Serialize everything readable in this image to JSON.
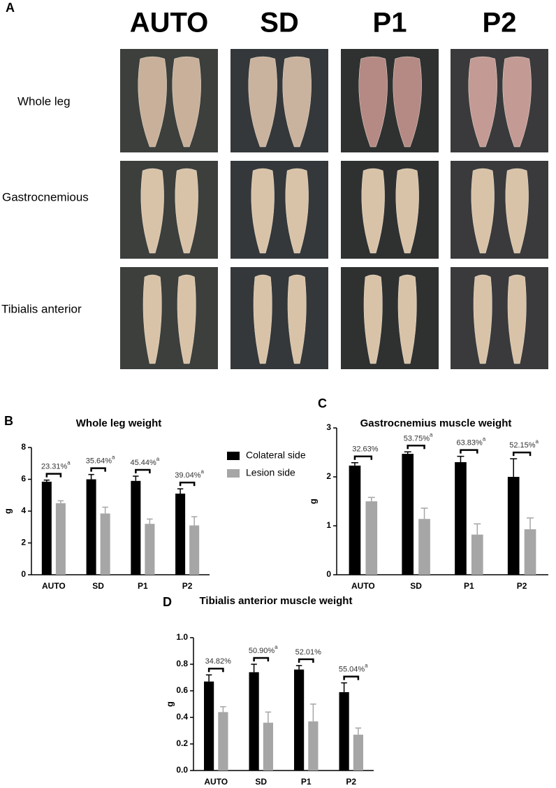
{
  "panel_a": {
    "label": "A",
    "columns": [
      "AUTO",
      "SD",
      "P1",
      "P2"
    ],
    "rows": [
      "Whole leg",
      "Gastrocnemious",
      "Tibialis anterior"
    ]
  },
  "chart_data": [
    {
      "type": "bar",
      "label": "B",
      "title": "Whole leg weight",
      "ylabel": "g",
      "categories": [
        "AUTO",
        "SD",
        "P1",
        "P2"
      ],
      "series": [
        {
          "name": "Colateral side",
          "color": "#000000",
          "values": [
            5.85,
            6.0,
            5.9,
            5.1
          ],
          "errors": [
            0.1,
            0.3,
            0.3,
            0.3
          ]
        },
        {
          "name": "Lesion side",
          "color": "#a6a6a6",
          "values": [
            4.5,
            3.85,
            3.2,
            3.1
          ],
          "errors": [
            0.15,
            0.4,
            0.3,
            0.55
          ]
        }
      ],
      "annotations": [
        {
          "text": "23.31%",
          "mark": "a"
        },
        {
          "text": "35.64%",
          "mark": "a"
        },
        {
          "text": "45.44%",
          "mark": "a"
        },
        {
          "text": "39.04%",
          "mark": "a"
        }
      ],
      "ylim": [
        0,
        8
      ],
      "yticks": [
        0,
        2,
        4,
        6,
        8
      ],
      "legend": "right"
    },
    {
      "type": "bar",
      "label": "C",
      "title": "Gastrocnemius muscle weight",
      "ylabel": "g",
      "categories": [
        "AUTO",
        "SD",
        "P1",
        "P2"
      ],
      "series": [
        {
          "color": "#000000",
          "values": [
            2.23,
            2.47,
            2.3,
            2.0
          ],
          "errors": [
            0.06,
            0.04,
            0.12,
            0.37
          ]
        },
        {
          "color": "#a6a6a6",
          "values": [
            1.5,
            1.14,
            0.82,
            0.93
          ],
          "errors": [
            0.08,
            0.22,
            0.22,
            0.23
          ]
        }
      ],
      "annotations": [
        {
          "text": "32.63%"
        },
        {
          "text": "53.75%",
          "mark": "a"
        },
        {
          "text": "63.83%",
          "mark": "a"
        },
        {
          "text": "52.15%",
          "mark": "a"
        }
      ],
      "ylim": [
        0,
        3
      ],
      "yticks": [
        0,
        1,
        2,
        3
      ]
    },
    {
      "type": "bar",
      "label": "D",
      "title": "Tibialis anterior muscle weight",
      "ylabel": "g",
      "categories": [
        "AUTO",
        "SD",
        "P1",
        "P2"
      ],
      "series": [
        {
          "color": "#000000",
          "values": [
            0.67,
            0.74,
            0.76,
            0.59
          ],
          "errors": [
            0.05,
            0.06,
            0.03,
            0.07
          ]
        },
        {
          "color": "#a6a6a6",
          "values": [
            0.44,
            0.36,
            0.37,
            0.27
          ],
          "errors": [
            0.04,
            0.08,
            0.13,
            0.05
          ]
        }
      ],
      "annotations": [
        {
          "text": "34.82%"
        },
        {
          "text": "50.90%",
          "mark": "a"
        },
        {
          "text": "52.01%"
        },
        {
          "text": "55.04%",
          "mark": "a"
        }
      ],
      "ylim": [
        0,
        1
      ],
      "yticks": [
        {
          "value": 0,
          "label": "0.0"
        },
        0.2,
        0.4,
        0.6,
        0.8,
        {
          "value": 1,
          "label": "1.0"
        }
      ]
    }
  ]
}
